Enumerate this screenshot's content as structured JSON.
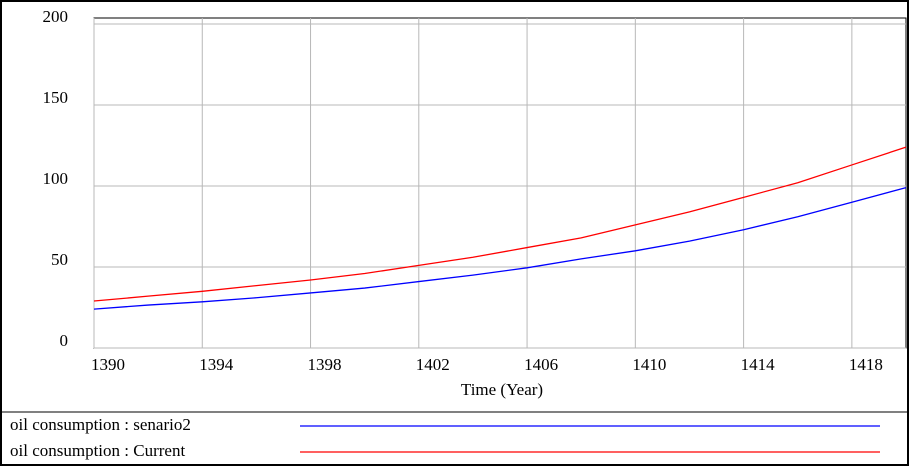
{
  "chart_data": {
    "type": "line",
    "xlabel": "Time (Year)",
    "x": [
      1390,
      1392,
      1394,
      1396,
      1398,
      1400,
      1402,
      1404,
      1406,
      1408,
      1410,
      1412,
      1414,
      1416,
      1418,
      1420
    ],
    "series": [
      {
        "name": "oil consumption : senario2",
        "color": "#0000ff",
        "values": [
          24,
          26.5,
          28.5,
          31,
          34,
          37,
          41,
          45,
          49.5,
          55,
          60,
          66,
          73,
          81,
          90,
          99
        ]
      },
      {
        "name": "oil consumption : Current",
        "color": "#ff0000",
        "values": [
          29,
          32,
          35,
          38.5,
          42,
          46,
          51,
          56,
          62,
          68,
          76,
          84,
          93,
          102,
          113,
          124
        ]
      }
    ],
    "xlim": [
      1390,
      1420
    ],
    "xticks": [
      1390,
      1394,
      1398,
      1402,
      1406,
      1410,
      1414,
      1418
    ],
    "ylim": [
      0,
      200
    ],
    "yticks": [
      0,
      50,
      100,
      150,
      200
    ],
    "grid": true
  }
}
